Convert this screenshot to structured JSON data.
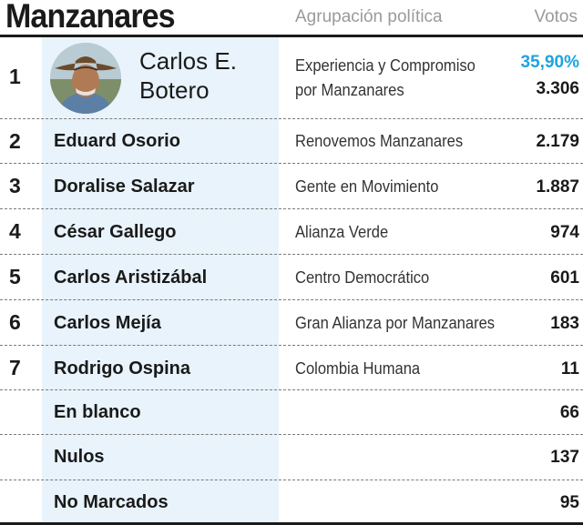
{
  "header": {
    "title": "Manzanares",
    "col_party": "Agrupación política",
    "col_votes": "Votos"
  },
  "winner": {
    "rank": "1",
    "name_line1": "Carlos E.",
    "name_line2": "Botero",
    "party_line1": "Experiencia y Compromiso",
    "party_line2": "por Manzanares",
    "percent": "35,90%",
    "votes": "3.306",
    "photo_icon": "candidate-portrait"
  },
  "rows": [
    {
      "rank": "2",
      "name": "Eduard Osorio",
      "party": "Renovemos Manzanares",
      "votes": "2.179"
    },
    {
      "rank": "3",
      "name": "Doralise Salazar",
      "party": "Gente en Movimiento",
      "votes": "1.887"
    },
    {
      "rank": "4",
      "name": "César Gallego",
      "party": "Alianza Verde",
      "votes": "974"
    },
    {
      "rank": "5",
      "name": "Carlos Aristizábal",
      "party": "Centro Democrático",
      "votes": "601"
    },
    {
      "rank": "6",
      "name": "Carlos Mejía",
      "party": "Gran Alianza por Manzanares",
      "votes": "183"
    },
    {
      "rank": "7",
      "name": "Rodrigo Ospina",
      "party": "Colombia Humana",
      "votes": "11"
    },
    {
      "rank": "",
      "name": "En blanco",
      "party": "",
      "votes": "66"
    },
    {
      "rank": "",
      "name": "Nulos",
      "party": "",
      "votes": "137"
    },
    {
      "rank": "",
      "name": "No Marcados",
      "party": "",
      "votes": "95"
    }
  ],
  "colors": {
    "accent": "#1ea3e0",
    "band": "#e8f3fb",
    "rule": "#1a1a1a"
  }
}
